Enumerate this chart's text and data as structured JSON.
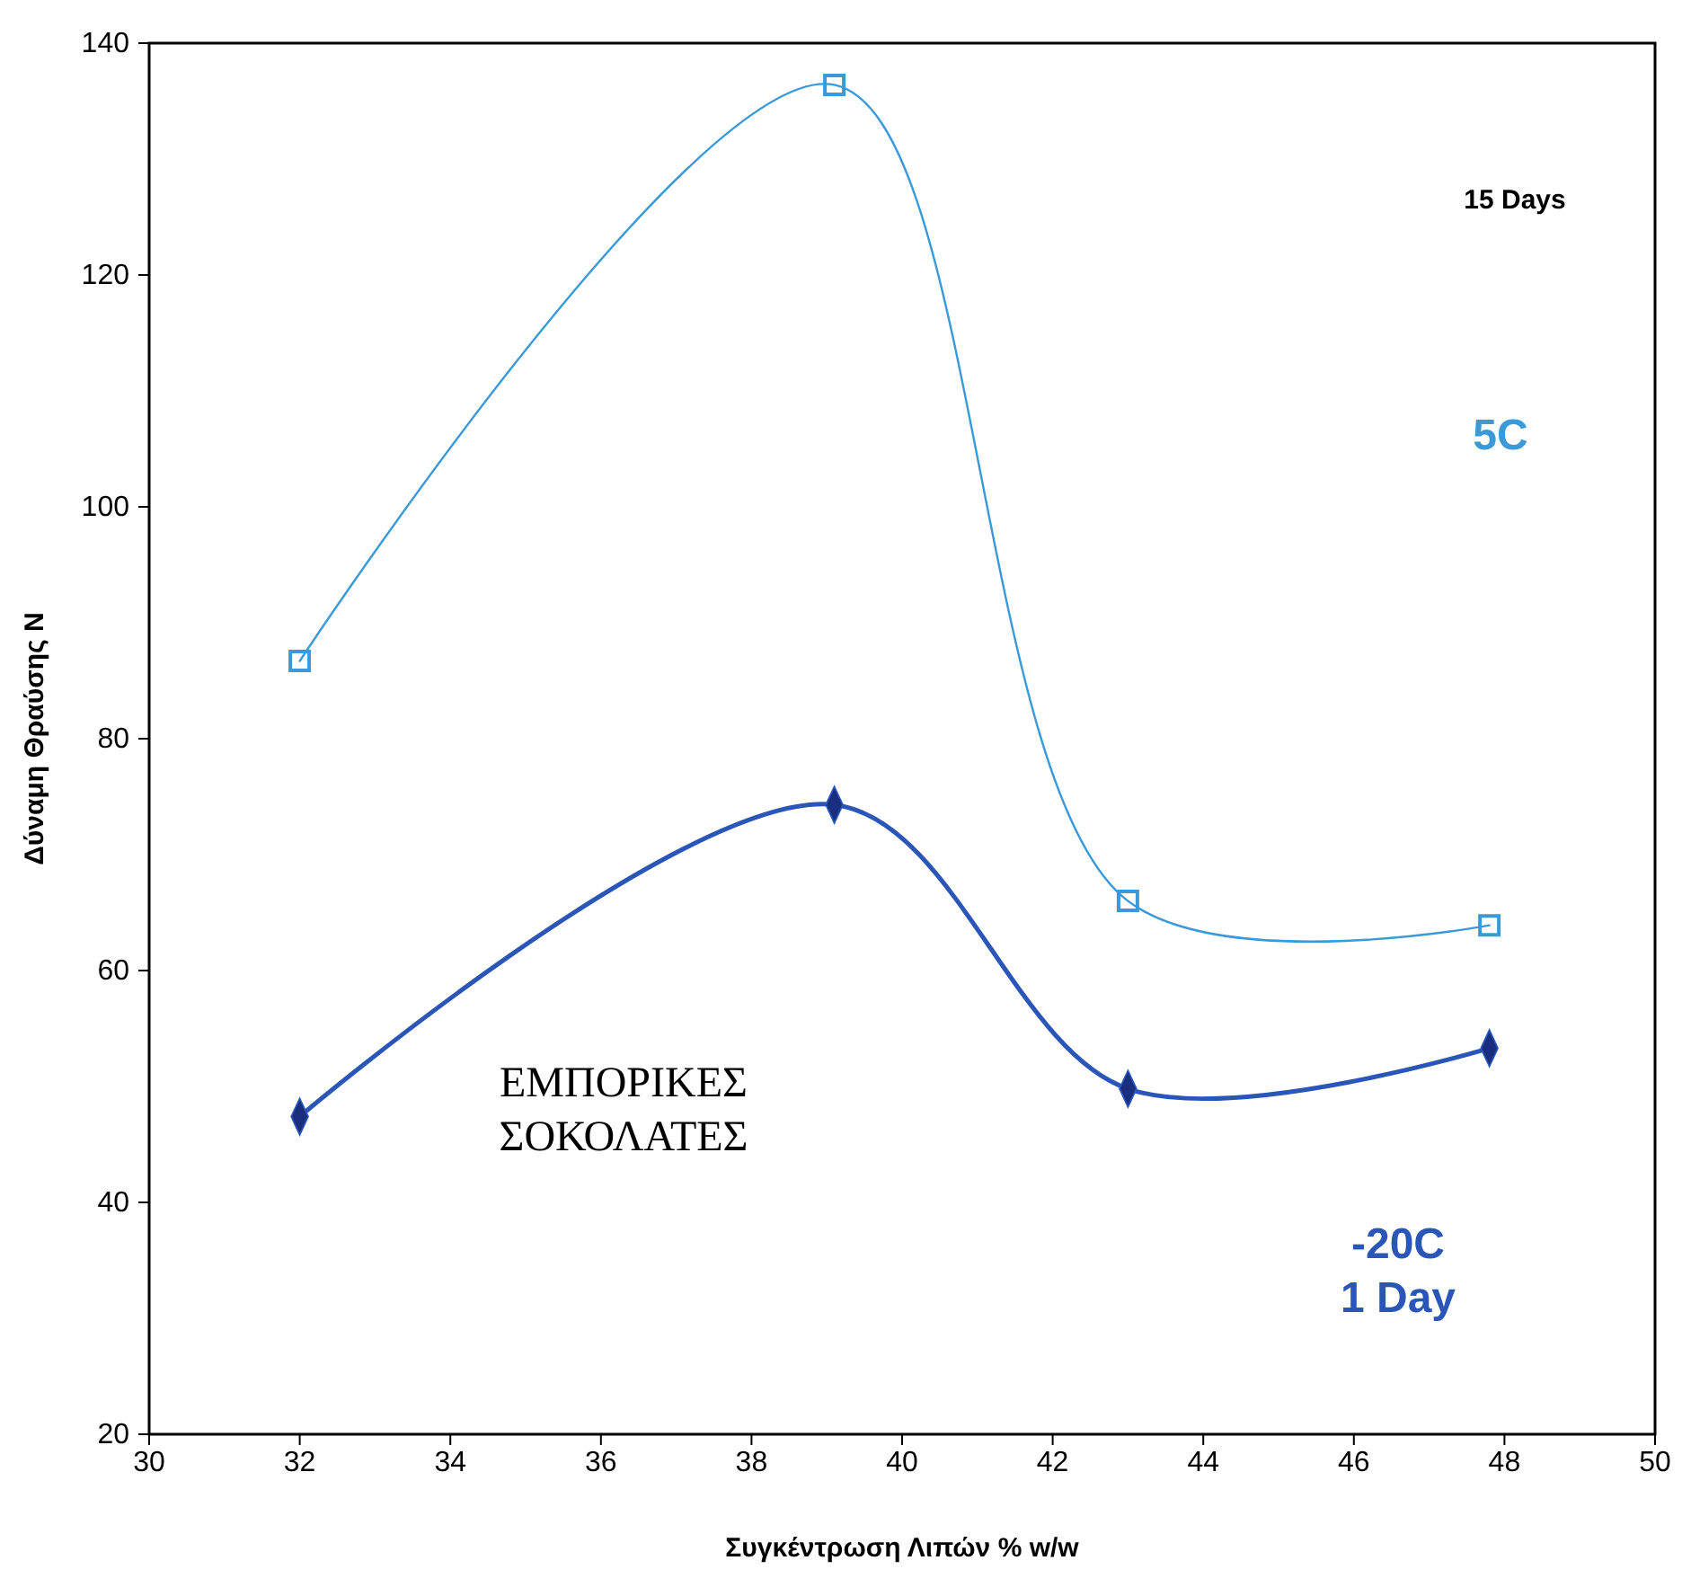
{
  "chart_data": {
    "type": "line",
    "xlabel": "Συγκέντρωση Λιπών % w/w",
    "ylabel": "Δύναμη Θραύσης N",
    "x": [
      32,
      39.1,
      43,
      47.8
    ],
    "series": [
      {
        "name": "5C",
        "color": "#3a9ad9",
        "marker": "square",
        "values": [
          86.7,
          136.4,
          66.0,
          63.9
        ]
      },
      {
        "name": "-20C 1 Day",
        "color": "#2a56b8",
        "marker": "diamond",
        "values": [
          47.4,
          74.3,
          49.8,
          53.3
        ]
      }
    ],
    "annotations": [
      "15 Days",
      "ΕΜΠΟΡΙΚΕΣ ΣΟΚΟΛΑΤΕΣ"
    ],
    "xlim": [
      30,
      50
    ],
    "xticks": [
      30,
      32,
      34,
      36,
      38,
      40,
      42,
      44,
      46,
      48,
      50
    ],
    "ylim": [
      20,
      140
    ],
    "yticks": [
      20,
      40,
      60,
      80,
      100,
      120,
      140
    ],
    "grid": false,
    "legend": false
  }
}
